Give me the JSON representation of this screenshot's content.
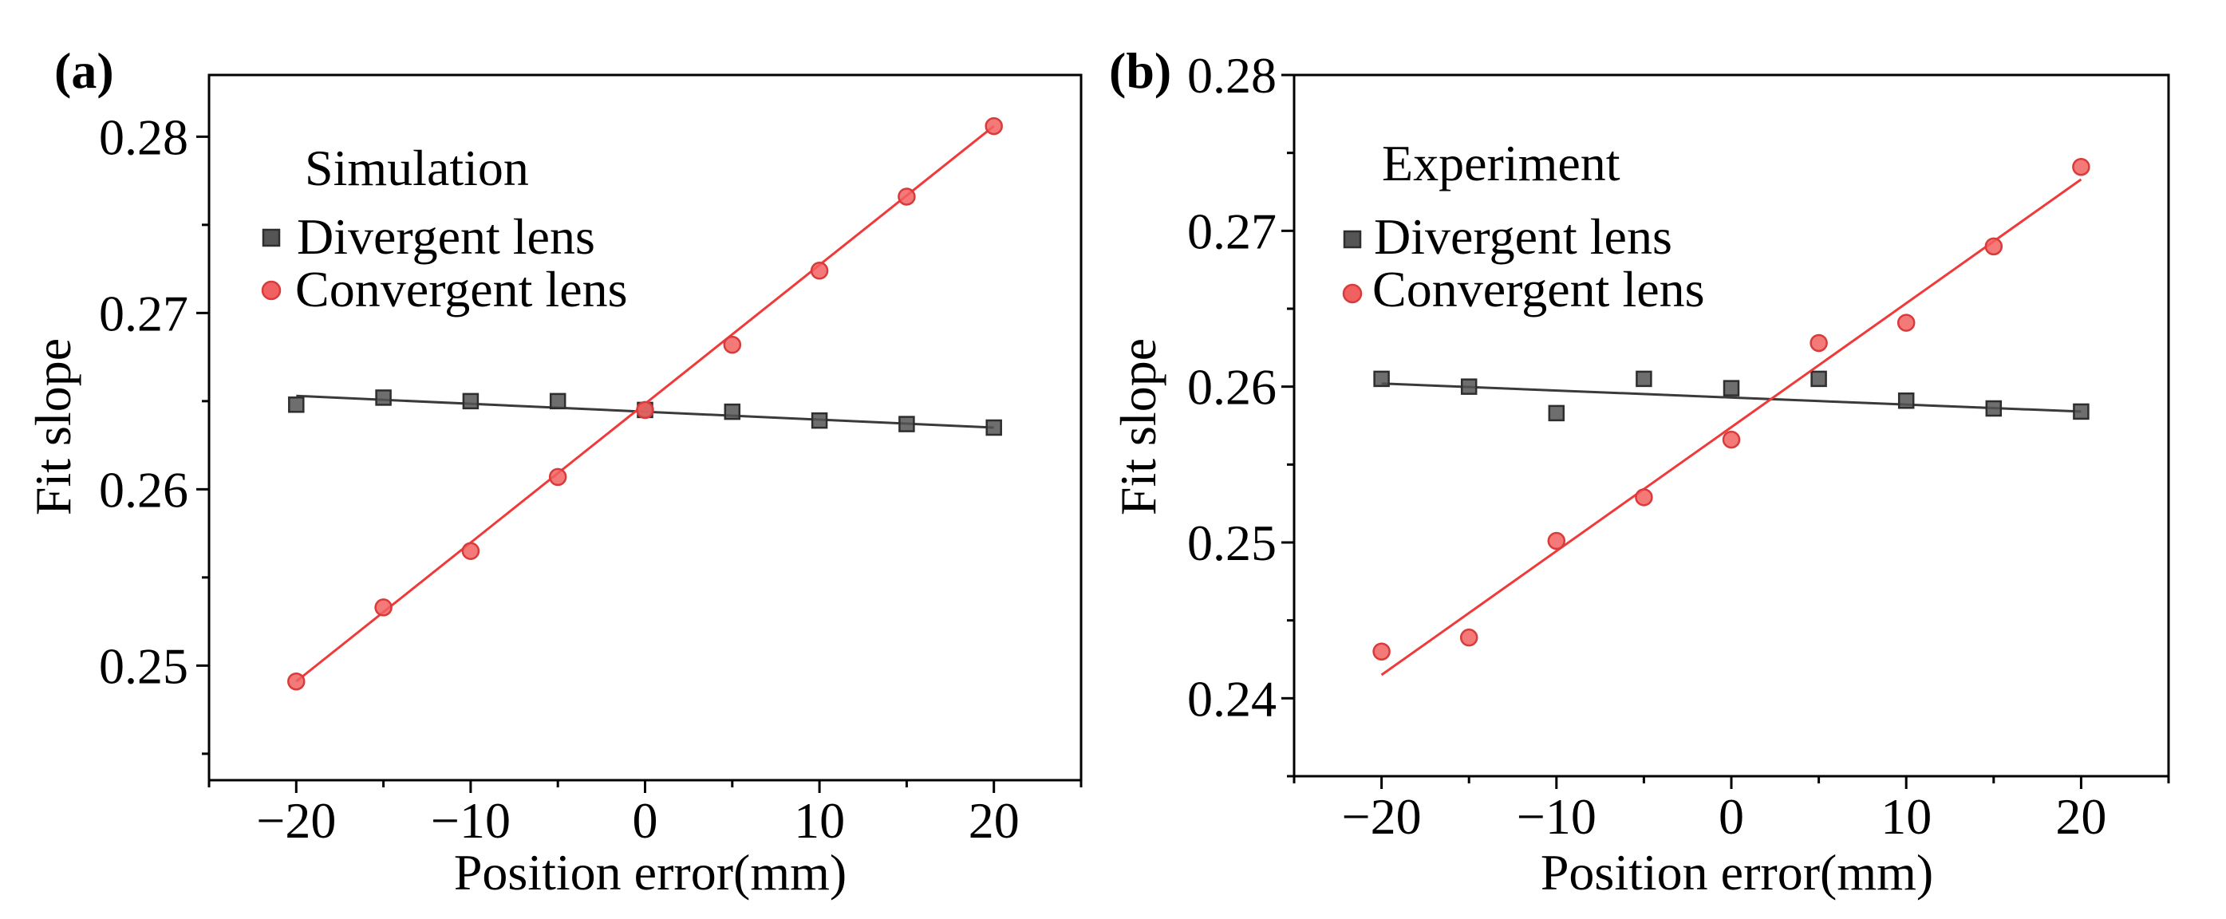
{
  "figure": {
    "panels": [
      "(a)",
      "(b)"
    ]
  },
  "colors": {
    "divergent": "#555555",
    "divergent_line": "#3a3a3a",
    "convergent": "#f26161",
    "convergent_line": "#f03a3a"
  },
  "chart_data": [
    {
      "type": "scatter",
      "panel_label": "(a)",
      "legend_title": "Simulation",
      "xlabel": "Position error(mm)",
      "ylabel": "Fit slope",
      "xlim": [
        -25,
        25
      ],
      "ylim": [
        0.2435,
        0.2835
      ],
      "xticks": [
        -20,
        -10,
        0,
        10,
        20
      ],
      "xtick_labels": [
        "−20",
        "−10",
        "0",
        "10",
        "20"
      ],
      "yticks": [
        0.25,
        0.26,
        0.27,
        0.28
      ],
      "ytick_labels": [
        "0.25",
        "0.26",
        "0.27",
        "0.28"
      ],
      "x": [
        -20,
        -15,
        -10,
        -5,
        0,
        5,
        10,
        15,
        20
      ],
      "series": [
        {
          "name": "Divergent lens",
          "marker": "square",
          "values": [
            0.2648,
            0.2652,
            0.265,
            0.265,
            0.2645,
            0.2644,
            0.2639,
            0.2637,
            0.2635
          ],
          "fit": [
            0.2653,
            0.2635
          ]
        },
        {
          "name": "Convergent lens",
          "marker": "circle",
          "values": [
            0.2491,
            0.2533,
            0.2565,
            0.2607,
            0.2645,
            0.2682,
            0.2724,
            0.2766,
            0.2806
          ],
          "fit": [
            0.2491,
            0.2806
          ]
        }
      ]
    },
    {
      "type": "scatter",
      "panel_label": "(b)",
      "legend_title": "Experiment",
      "xlabel": "Position error(mm)",
      "ylabel": "Fit slope",
      "xlim": [
        -25,
        25
      ],
      "ylim": [
        0.235,
        0.28
      ],
      "xticks": [
        -20,
        -10,
        0,
        10,
        20
      ],
      "xtick_labels": [
        "−20",
        "−10",
        "0",
        "10",
        "20"
      ],
      "yticks": [
        0.24,
        0.25,
        0.26,
        0.27,
        0.28
      ],
      "ytick_labels": [
        "0.24",
        "0.25",
        "0.26",
        "0.27",
        "0.28"
      ],
      "x": [
        -20,
        -15,
        -10,
        -5,
        0,
        5,
        10,
        15,
        20
      ],
      "series": [
        {
          "name": "Divergent lens",
          "marker": "square",
          "values": [
            0.2605,
            0.26,
            0.2583,
            0.2605,
            0.2599,
            0.2605,
            0.2591,
            0.2586,
            0.2584
          ],
          "fit": [
            0.2602,
            0.2584
          ]
        },
        {
          "name": "Convergent lens",
          "marker": "circle",
          "values": [
            0.243,
            0.2439,
            0.2501,
            0.2529,
            0.2566,
            0.2628,
            0.2641,
            0.269,
            0.2741
          ],
          "fit": [
            0.2415,
            0.2733
          ]
        }
      ]
    }
  ]
}
